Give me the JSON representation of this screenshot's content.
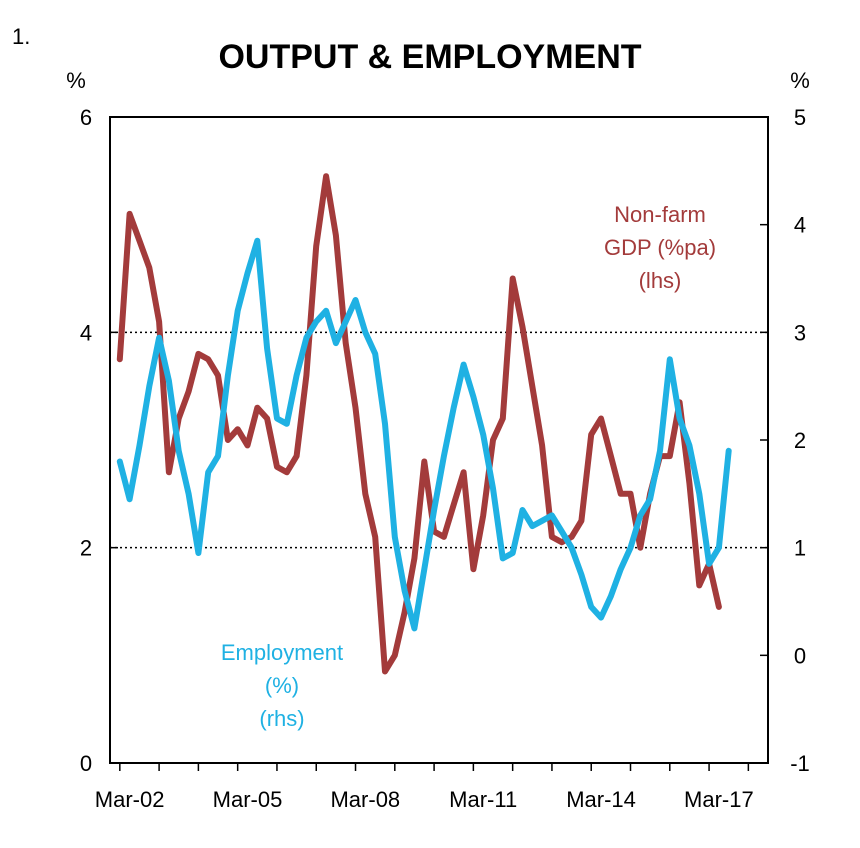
{
  "chart_data": {
    "type": "line",
    "figure_number": "1.",
    "title": "OUTPUT & EMPLOYMENT",
    "left_axis": {
      "unit": "%",
      "ylim": [
        0,
        6
      ],
      "ticks": [
        "0",
        "2",
        "4",
        "6"
      ]
    },
    "right_axis": {
      "unit": "%",
      "ylim": [
        -1,
        5
      ],
      "ticks": [
        "-1",
        "0",
        "1",
        "2",
        "3",
        "4",
        "5"
      ]
    },
    "x_tick_labels": [
      "Mar-02",
      "Mar-05",
      "Mar-08",
      "Mar-11",
      "Mar-14",
      "Mar-17"
    ],
    "x_range": [
      2001.75,
      2018.5
    ],
    "gridlines_left": [
      2,
      4
    ],
    "series": [
      {
        "axis": "left",
        "color": "#a33b3b",
        "label_lines": [
          "Non-farm",
          "GDP (%pa)",
          "(lhs)"
        ],
        "x": [
          2002.0,
          2002.25,
          2002.5,
          2002.75,
          2003.0,
          2003.25,
          2003.5,
          2003.75,
          2004.0,
          2004.25,
          2004.5,
          2004.75,
          2005.0,
          2005.25,
          2005.5,
          2005.75,
          2006.0,
          2006.25,
          2006.5,
          2006.75,
          2007.0,
          2007.25,
          2007.5,
          2007.75,
          2008.0,
          2008.25,
          2008.5,
          2008.75,
          2009.0,
          2009.25,
          2009.5,
          2009.75,
          2010.0,
          2010.25,
          2010.5,
          2010.75,
          2011.0,
          2011.25,
          2011.5,
          2011.75,
          2012.0,
          2012.25,
          2012.5,
          2012.75,
          2013.0,
          2013.25,
          2013.5,
          2013.75,
          2014.0,
          2014.25,
          2014.5,
          2014.75,
          2015.0,
          2015.25,
          2015.5,
          2015.75,
          2016.0,
          2016.25,
          2016.5,
          2016.75,
          2017.0,
          2017.25
        ],
        "values": [
          3.75,
          5.1,
          4.85,
          4.6,
          4.1,
          2.7,
          3.2,
          3.45,
          3.8,
          3.75,
          3.6,
          3.0,
          3.1,
          2.95,
          3.3,
          3.2,
          2.75,
          2.7,
          2.85,
          3.6,
          4.8,
          5.45,
          4.9,
          3.9,
          3.3,
          2.5,
          2.1,
          0.85,
          1.0,
          1.4,
          1.9,
          2.8,
          2.15,
          2.1,
          2.4,
          2.7,
          1.8,
          2.3,
          3.0,
          3.2,
          4.5,
          4.05,
          3.5,
          2.95,
          2.1,
          2.05,
          2.1,
          2.25,
          3.05,
          3.2,
          2.85,
          2.5,
          2.5,
          2.0,
          2.5,
          2.85,
          2.85,
          3.35,
          2.6,
          1.65,
          1.85,
          1.45
        ]
      },
      {
        "axis": "right",
        "color": "#1fb1e3",
        "label_lines": [
          "Employment",
          "(%)",
          "(rhs)"
        ],
        "x": [
          2002.0,
          2002.25,
          2002.5,
          2002.75,
          2003.0,
          2003.25,
          2003.5,
          2003.75,
          2004.0,
          2004.25,
          2004.5,
          2004.75,
          2005.0,
          2005.25,
          2005.5,
          2005.75,
          2006.0,
          2006.25,
          2006.5,
          2006.75,
          2007.0,
          2007.25,
          2007.5,
          2007.75,
          2008.0,
          2008.25,
          2008.5,
          2008.75,
          2009.0,
          2009.25,
          2009.5,
          2009.75,
          2010.0,
          2010.25,
          2010.5,
          2010.75,
          2011.0,
          2011.25,
          2011.5,
          2011.75,
          2012.0,
          2012.25,
          2012.5,
          2012.75,
          2013.0,
          2013.25,
          2013.5,
          2013.75,
          2014.0,
          2014.25,
          2014.5,
          2014.75,
          2015.0,
          2015.25,
          2015.5,
          2015.75,
          2016.0,
          2016.25,
          2016.5,
          2016.75,
          2017.0,
          2017.25,
          2017.5
        ],
        "values": [
          1.8,
          1.45,
          1.95,
          2.5,
          2.95,
          2.55,
          1.9,
          1.5,
          0.95,
          1.7,
          1.85,
          2.6,
          3.2,
          3.55,
          3.85,
          2.85,
          2.2,
          2.15,
          2.6,
          2.95,
          3.1,
          3.2,
          2.9,
          3.1,
          3.3,
          3.0,
          2.8,
          2.15,
          1.1,
          0.6,
          0.25,
          0.8,
          1.35,
          1.85,
          2.3,
          2.7,
          2.4,
          2.05,
          1.55,
          0.9,
          0.95,
          1.35,
          1.2,
          1.25,
          1.3,
          1.15,
          1.0,
          0.75,
          0.45,
          0.35,
          0.55,
          0.8,
          1.0,
          1.3,
          1.45,
          1.9,
          2.75,
          2.2,
          1.95,
          1.5,
          0.85,
          1.0,
          1.9
        ]
      }
    ]
  }
}
